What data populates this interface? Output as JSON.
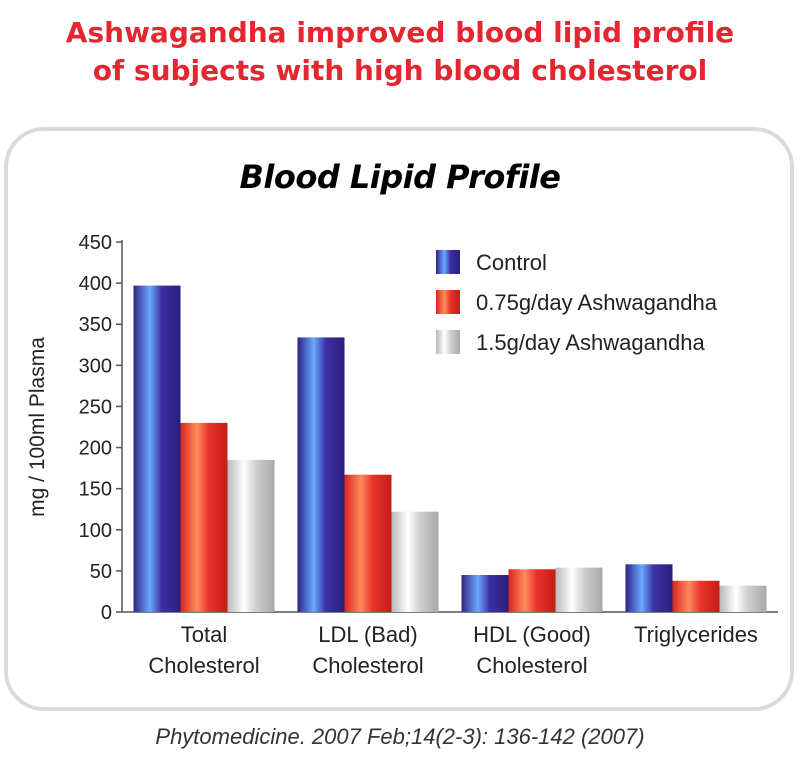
{
  "headline": {
    "line1": "Ashwagandha improved blood lipid profile",
    "line2": "of subjects with high blood cholesterol"
  },
  "citation": "Phytomedicine. 2007 Feb;14(2-3): 136-142 (2007)",
  "colors": {
    "headline": "#e3262f",
    "card_border": "#dadada",
    "control": "#3a2a9e",
    "dose_low": "#e8332b",
    "dose_high": "#c9c9c9"
  },
  "chart_data": {
    "type": "bar",
    "title": "Blood Lipid Profile",
    "ylabel": "mg / 100ml Plasma",
    "xlabel": "",
    "ylim": [
      0,
      450
    ],
    "yticks": [
      0,
      50,
      100,
      150,
      200,
      250,
      300,
      350,
      400,
      450
    ],
    "categories": [
      [
        "Total",
        "Cholesterol"
      ],
      [
        "LDL (Bad)",
        "Cholesterol"
      ],
      [
        "HDL (Good)",
        "Cholesterol"
      ],
      [
        "Triglycerides"
      ]
    ],
    "series": [
      {
        "name": "Control",
        "color": "#3a2a9e",
        "values": [
          397,
          334,
          45,
          58
        ]
      },
      {
        "name": "0.75g/day Ashwagandha",
        "color": "#e8332b",
        "values": [
          230,
          167,
          52,
          38
        ]
      },
      {
        "name": "1.5g/day Ashwagandha",
        "color": "#c9c9c9",
        "values": [
          185,
          122,
          54,
          32
        ]
      }
    ],
    "legend_position": "top-right",
    "grid": false
  }
}
